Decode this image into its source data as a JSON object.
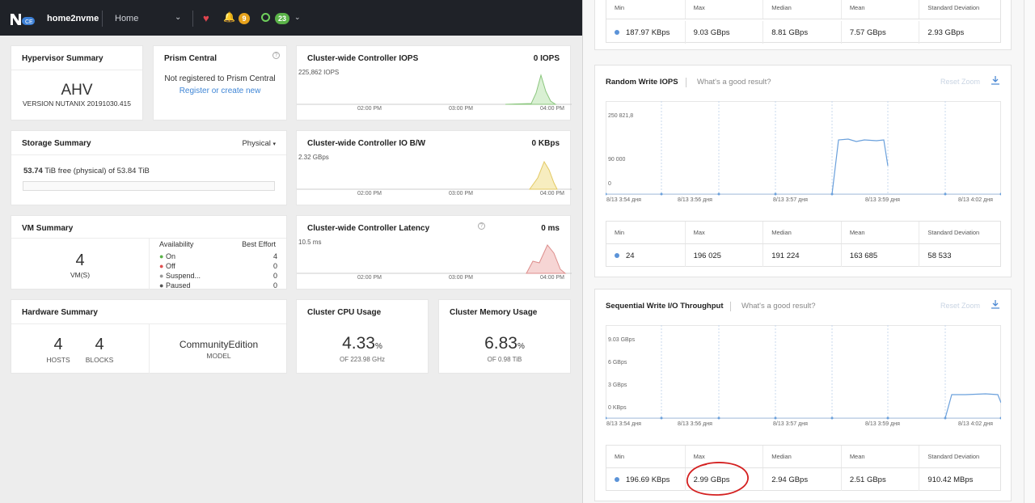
{
  "topbar": {
    "cluster_name": "home2nvme",
    "home": "Home",
    "alerts_count": "9",
    "tasks_count": "23"
  },
  "hypervisor": {
    "title": "Hypervisor Summary",
    "name": "AHV",
    "version": "VERSION NUTANIX 20191030.415"
  },
  "prism": {
    "title": "Prism Central",
    "text": "Not registered to Prism Central",
    "link": "Register or create new"
  },
  "iops": {
    "title": "Cluster-wide Controller IOPS",
    "value": "0 IOPS",
    "ymax": "225,862 IOPS",
    "t1": "02:00 PM",
    "t2": "03:00 PM",
    "t3": "04:00 PM"
  },
  "storage": {
    "title": "Storage Summary",
    "dropdown": "Physical",
    "free_val": "53.74",
    "free_text": "TiB free (physical) of 53.84 TiB"
  },
  "iobw": {
    "title": "Cluster-wide Controller IO B/W",
    "value": "0 KBps",
    "ymax": "2.32 GBps",
    "t1": "02:00 PM",
    "t2": "03:00 PM",
    "t3": "04:00 PM"
  },
  "vm": {
    "title": "VM Summary",
    "count": "4",
    "label": "VM(S)",
    "col1": "Availability",
    "col2": "Best Effort",
    "rows": [
      {
        "label": "On",
        "val": "4"
      },
      {
        "label": "Off",
        "val": "0"
      },
      {
        "label": "Suspend...",
        "val": "0"
      },
      {
        "label": "Paused",
        "val": "0"
      }
    ]
  },
  "latency": {
    "title": "Cluster-wide Controller Latency",
    "value": "0 ms",
    "ymax": "10.5 ms",
    "t1": "02:00 PM",
    "t2": "03:00 PM",
    "t3": "04:00 PM"
  },
  "hardware": {
    "title": "Hardware Summary",
    "hosts": "4",
    "hosts_label": "HOSTS",
    "blocks": "4",
    "blocks_label": "BLOCKS",
    "model": "CommunityEdition",
    "model_label": "MODEL"
  },
  "cpu": {
    "title": "Cluster CPU Usage",
    "value": "4.33",
    "unit": "%",
    "sub": "OF 223.98 GHz"
  },
  "mem": {
    "title": "Cluster Memory Usage",
    "value": "6.83",
    "unit": "%",
    "sub": "OF 0.98 TiB"
  },
  "panel": {
    "top_stats": {
      "headers": [
        "Min",
        "Max",
        "Median",
        "Mean",
        "Standard Deviation"
      ],
      "values": [
        "187.97 KBps",
        "9.03 GBps",
        "8.81 GBps",
        "7.57 GBps",
        "2.93 GBps"
      ]
    },
    "rw": {
      "title": "Random Write IOPS",
      "help": "What's a good result?",
      "reset": "Reset Zoom",
      "yticks": [
        "250 821,8",
        "90 000",
        "0"
      ],
      "xticks": [
        "8/13 3:54 дня",
        "8/13 3:56 дня",
        "8/13 3:57 дня",
        "8/13 3:59 дня",
        "8/13 4:02 дня"
      ],
      "headers": [
        "Min",
        "Max",
        "Median",
        "Mean",
        "Standard Deviation"
      ],
      "values": [
        "24",
        "196 025",
        "191 224",
        "163 685",
        "58 533"
      ]
    },
    "sw": {
      "title": "Sequential Write I/O Throughput",
      "help": "What's a good result?",
      "reset": "Reset Zoom",
      "yticks": [
        "9.03 GBps",
        "6 GBps",
        "3 GBps",
        "0 KBps"
      ],
      "xticks": [
        "8/13 3:54 дня",
        "8/13 3:56 дня",
        "8/13 3:57 дня",
        "8/13 3:59 дня",
        "8/13 4:02 дня"
      ],
      "headers": [
        "Min",
        "Max",
        "Median",
        "Mean",
        "Standard Deviation"
      ],
      "values": [
        "196.69 KBps",
        "2.99 GBps",
        "2.94 GBps",
        "2.51 GBps",
        "910.42 MBps"
      ]
    }
  },
  "colors": {
    "accent": "#5b93d8",
    "topbar": "#1f2228",
    "iops_fill": "#d9f0d3",
    "bw_fill": "#f7edbf",
    "lat_fill": "#f6d5d4",
    "annotation": "#d42020"
  }
}
